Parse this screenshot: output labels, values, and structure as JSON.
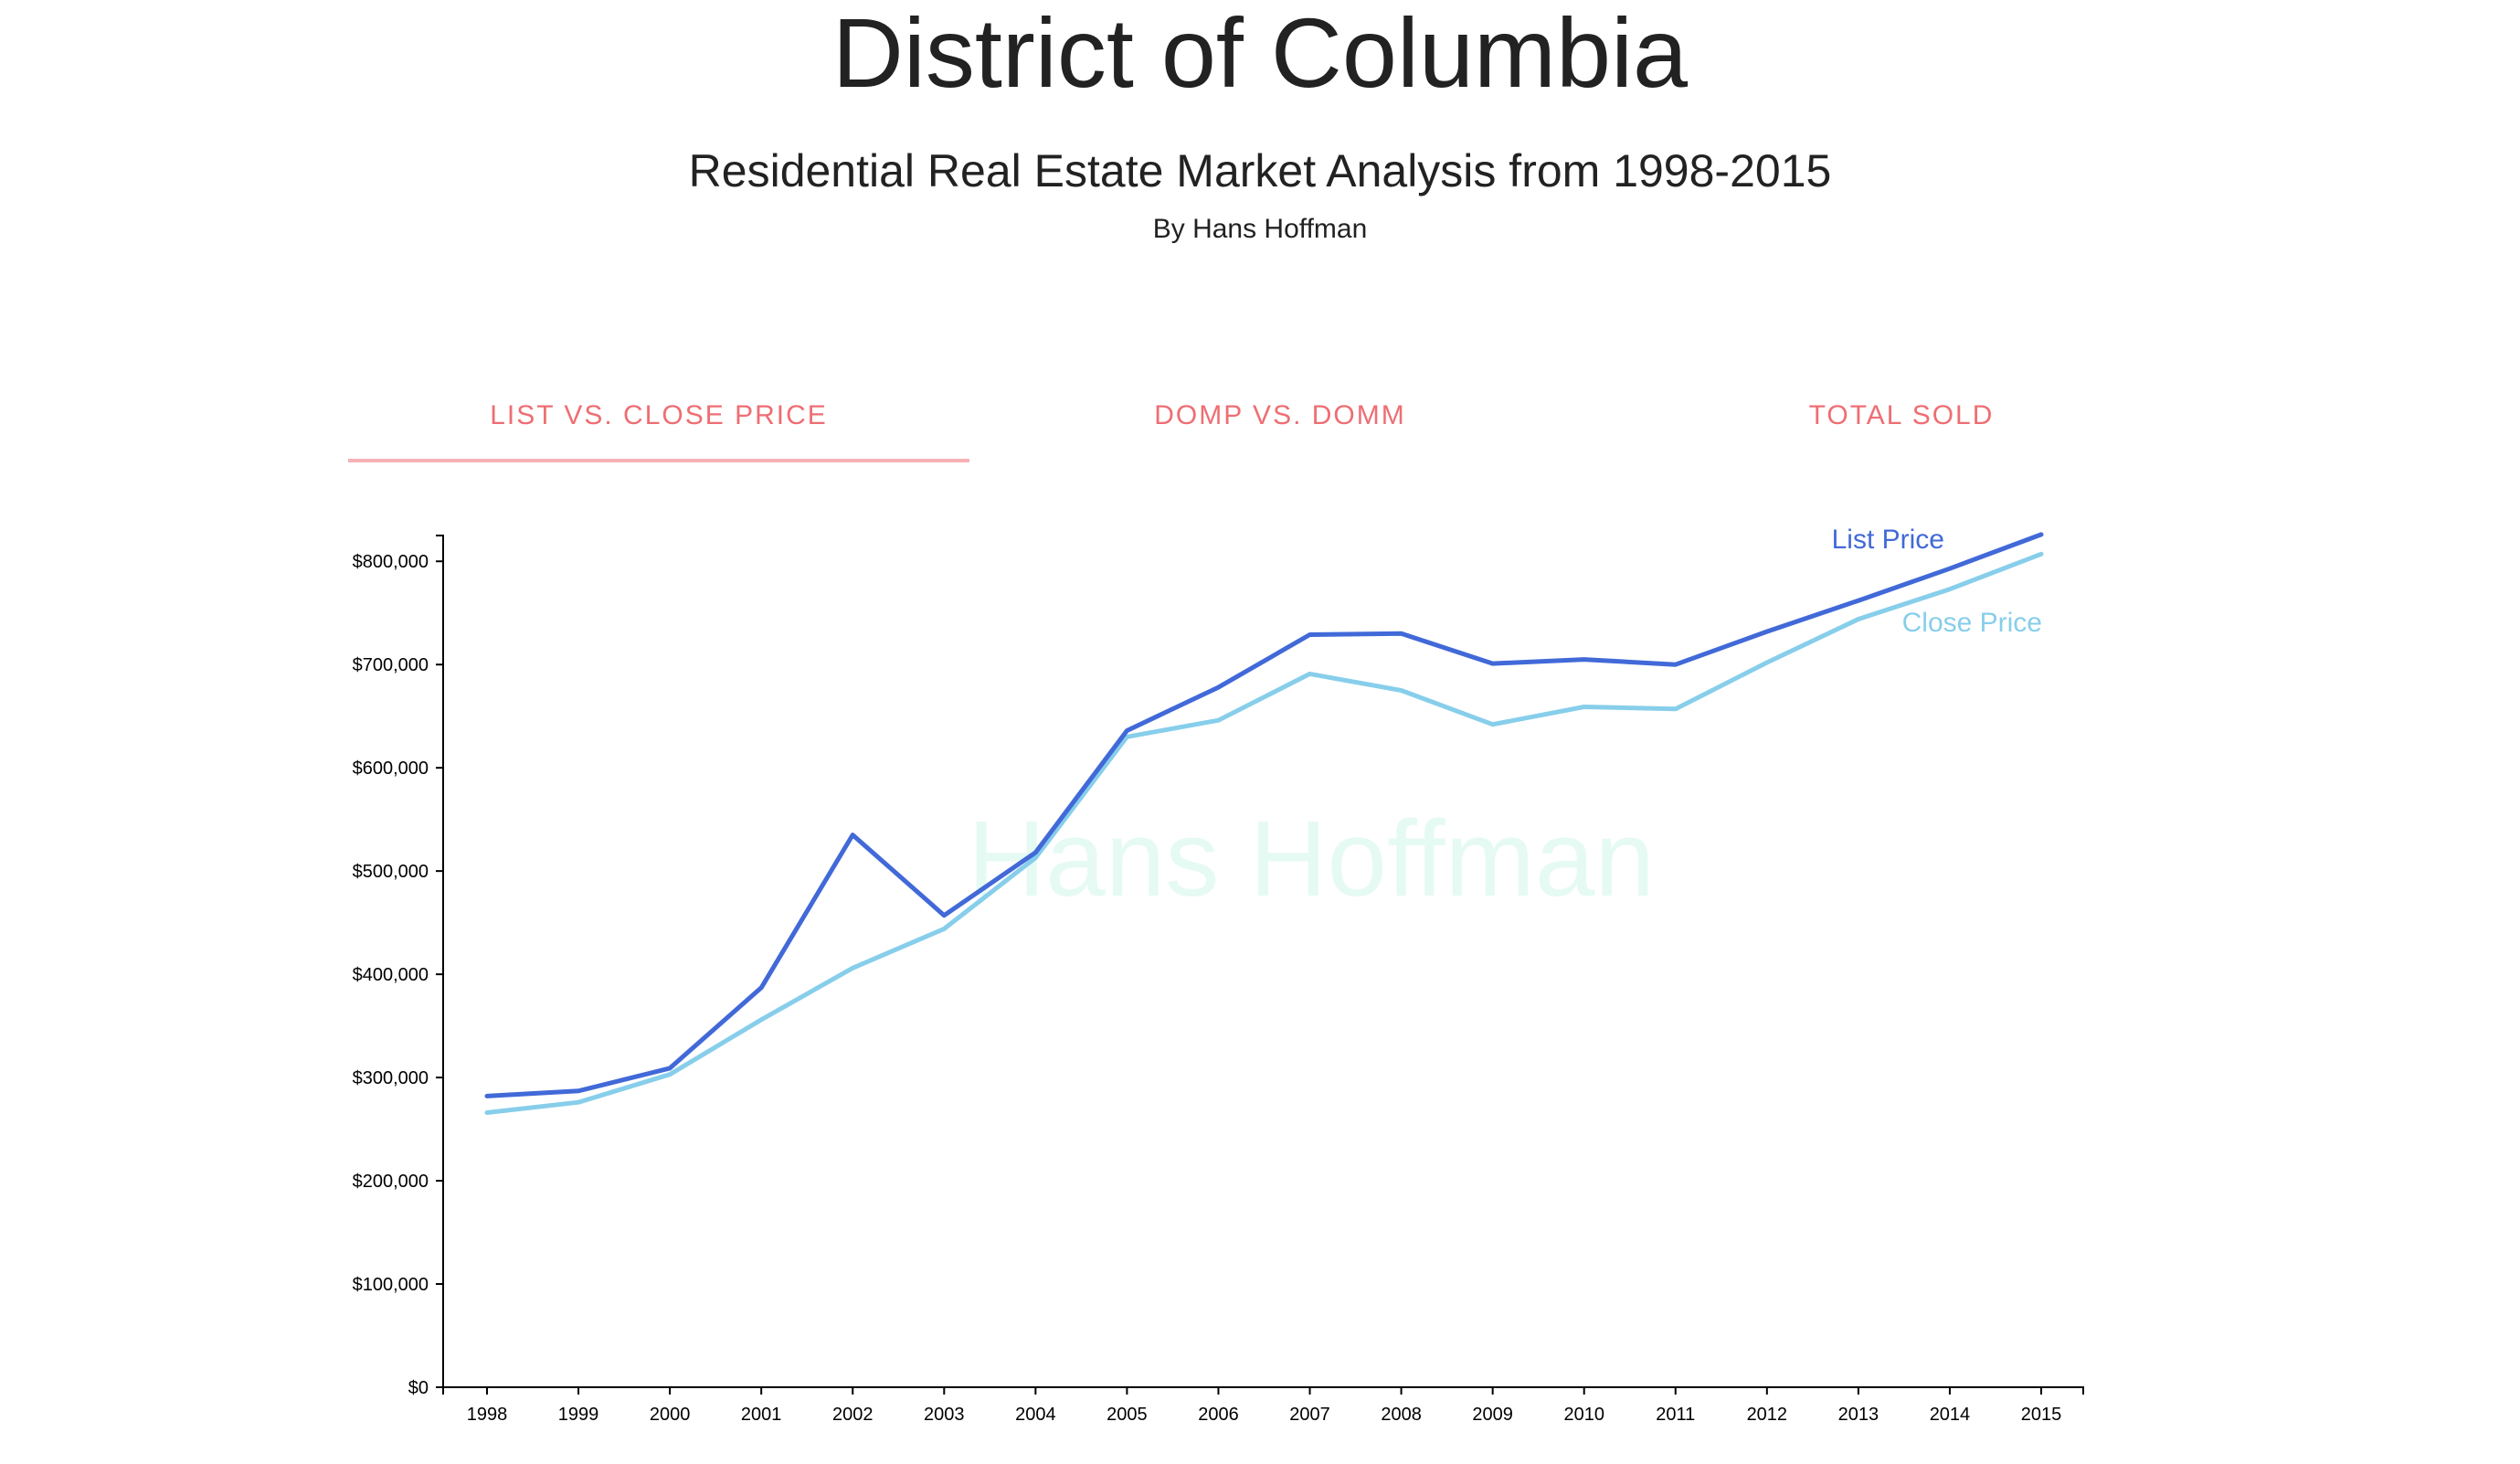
{
  "header": {
    "title": "District of Columbia",
    "subtitle": "Residential Real Estate Market Analysis from 1998-2015",
    "byline": "By Hans Hoffman"
  },
  "tabs": [
    {
      "label": "LIST VS. CLOSE PRICE",
      "active": true
    },
    {
      "label": "DOMP VS. DOMM",
      "active": false
    },
    {
      "label": "TOTAL SOLD",
      "active": false
    }
  ],
  "colors": {
    "tab_text": "#ee6e73",
    "tab_indicator": "#f6b2b5",
    "list_price": "#4169d8",
    "close_price": "#87ceeb",
    "watermark": "#e6faf4"
  },
  "chart_data": {
    "type": "line",
    "watermark": "Hans Hoffman",
    "x": [
      "1998",
      "1999",
      "2000",
      "2001",
      "2002",
      "2003",
      "2004",
      "2005",
      "2006",
      "2007",
      "2008",
      "2009",
      "2010",
      "2011",
      "2012",
      "2013",
      "2014",
      "2015"
    ],
    "ylim": [
      0,
      825000
    ],
    "y_ticks": [
      0,
      100000,
      200000,
      300000,
      400000,
      500000,
      600000,
      700000,
      800000
    ],
    "y_tick_labels": [
      "$0",
      "$100,000",
      "$200,000",
      "$300,000",
      "$400,000",
      "$500,000",
      "$600,000",
      "$700,000",
      "$800,000"
    ],
    "grid": false,
    "series": [
      {
        "name": "List Price",
        "color": "#4169d8",
        "values": [
          282000,
          287000,
          309000,
          387000,
          535000,
          457000,
          518000,
          636000,
          678000,
          729000,
          730000,
          701000,
          705000,
          700000,
          732000,
          762000,
          793000,
          826000
        ]
      },
      {
        "name": "Close Price",
        "color": "#87ceeb",
        "values": [
          266000,
          276000,
          303000,
          356000,
          406000,
          444000,
          513000,
          630000,
          646000,
          691000,
          675000,
          642000,
          659000,
          657000,
          702000,
          744000,
          773000,
          807000
        ]
      }
    ]
  }
}
